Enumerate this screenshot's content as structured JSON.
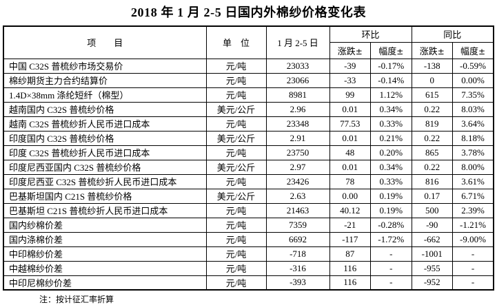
{
  "title": "2018 年 1 月 2-5 日国内外棉纱价格变化表",
  "note": "注：按计征汇率折算",
  "table": {
    "headers": {
      "item": "项　　目",
      "unit": "单　位",
      "date": "1 月 2-5 日",
      "mom": "环比",
      "yoy": "同比",
      "change": "涨跌",
      "pct": "幅度",
      "pm": "±"
    },
    "rows": [
      [
        "中国 C32S 普梳纱市场交易价",
        "元/吨",
        "23033",
        "-39",
        "-0.17%",
        "-138",
        "-0.59%"
      ],
      [
        "棉纱期货主力合约结算价",
        "元/吨",
        "23066",
        "-33",
        "-0.14%",
        "0",
        "0.00%"
      ],
      [
        "1.4D×38mm 涤纶短纤（棉型）",
        "元/吨",
        "8981",
        "99",
        "1.12%",
        "615",
        "7.35%"
      ],
      [
        "越南国内 C32S 普梳纱价格",
        "美元/公斤",
        "2.96",
        "0.01",
        "0.34%",
        "0.22",
        "8.03%"
      ],
      [
        "越南 C32S 普梳纱折人民币进口成本",
        "元/吨",
        "23348",
        "77.53",
        "0.33%",
        "819",
        "3.64%"
      ],
      [
        "印度国内 C32S 普梳纱价格",
        "美元/公斤",
        "2.91",
        "0.01",
        "0.21%",
        "0.22",
        "8.18%"
      ],
      [
        "印度 C32S 普梳纱折人民币进口成本",
        "元/吨",
        "23750",
        "48",
        "0.20%",
        "865",
        "3.78%"
      ],
      [
        "印度尼西亚国内 C32S 普梳纱价格",
        "美元/公斤",
        "2.97",
        "0.01",
        "0.34%",
        "0.22",
        "8.00%"
      ],
      [
        "印度尼西亚 C32S 普梳纱折人民币进口成本",
        "元/吨",
        "23426",
        "78",
        "0.33%",
        "816",
        "3.61%"
      ],
      [
        "巴基斯坦国内 C21S 普梳纱价格",
        "美元/公斤",
        "2.63",
        "0.00",
        "0.19%",
        "0.17",
        "6.71%"
      ],
      [
        "巴基斯坦 C21S 普梳纱折人民币进口成本",
        "元/吨",
        "21463",
        "40.12",
        "0.19%",
        "500",
        "2.39%"
      ],
      [
        "国内纱棉价差",
        "元/吨",
        "7359",
        "-21",
        "-0.28%",
        "-90",
        "-1.21%"
      ],
      [
        "国内涤棉价差",
        "元/吨",
        "6692",
        "-117",
        "-1.72%",
        "-662",
        "-9.00%"
      ],
      [
        "中印棉纱价差",
        "元/吨",
        "-718",
        "87",
        "-",
        "-1001",
        "-"
      ],
      [
        "中越棉纱价差",
        "元/吨",
        "-316",
        "116",
        "-",
        "-955",
        "-"
      ],
      [
        "中印尼棉纱价差",
        "元/吨",
        "-393",
        "116",
        "-",
        "-952",
        "-"
      ]
    ]
  }
}
